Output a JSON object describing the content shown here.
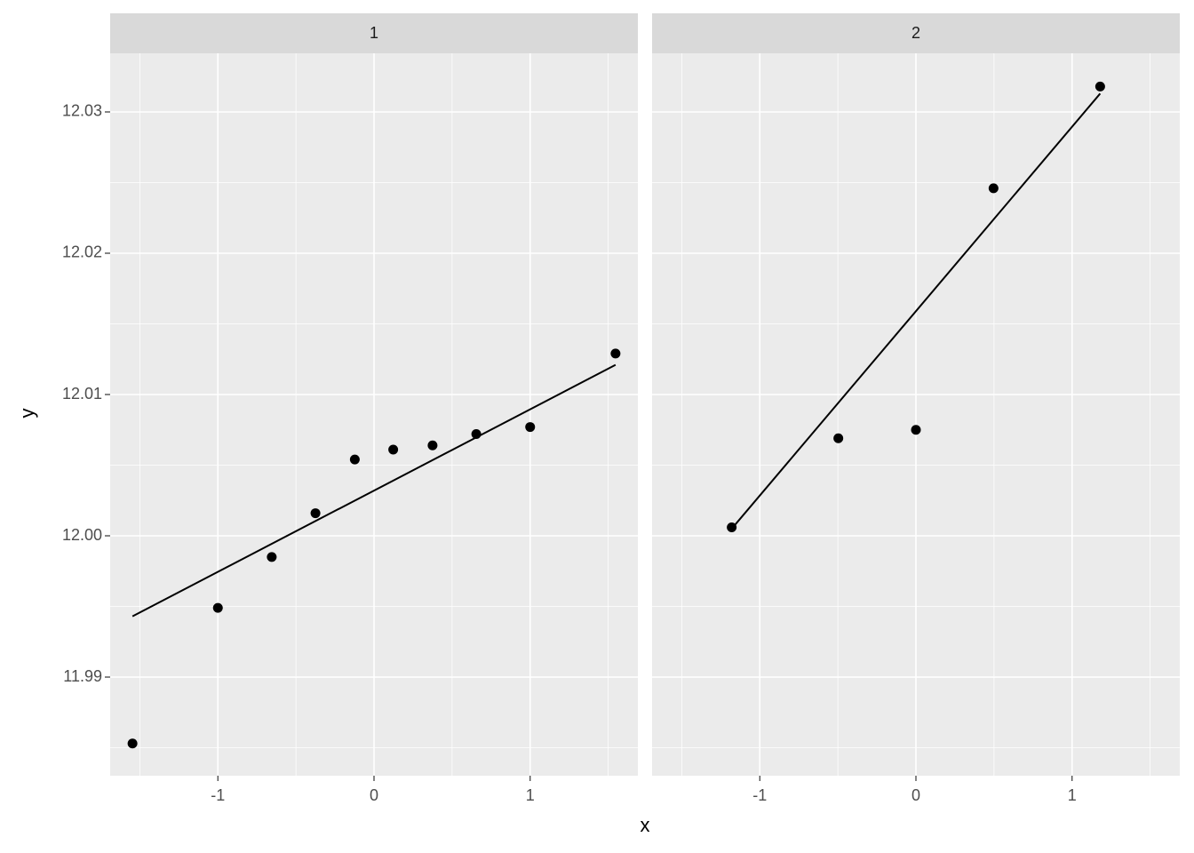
{
  "x_label": "x",
  "y_label": "y",
  "chart_data": [
    {
      "type": "scatter",
      "title": "1",
      "x": [
        -1.547,
        -1.0,
        -0.655,
        -0.375,
        -0.123,
        0.123,
        0.375,
        0.655,
        1.0,
        1.547
      ],
      "values": [
        11.9853,
        11.9949,
        11.9985,
        12.0016,
        12.0054,
        12.0061,
        12.0064,
        12.0072,
        12.0077,
        12.0129
      ],
      "line": {
        "x": [
          -1.547,
          1.547
        ],
        "values": [
          11.9943,
          12.0121
        ]
      },
      "color": "#000000",
      "xlim": [
        -1.69,
        1.69
      ],
      "xticks": [
        -1,
        0,
        1
      ],
      "xminor": [
        -1.5,
        -0.5,
        0.5,
        1.5
      ],
      "ylim": [
        11.98302,
        12.03415
      ],
      "yticks": [
        {
          "value": 11.99,
          "label": "11.99"
        },
        {
          "value": 12.0,
          "label": "12.00"
        },
        {
          "value": 12.01,
          "label": "12.01"
        },
        {
          "value": 12.02,
          "label": "12.02"
        },
        {
          "value": 12.03,
          "label": "12.03"
        }
      ],
      "yminor": [
        11.985,
        11.995,
        12.005,
        12.015,
        12.025
      ],
      "grid": true
    },
    {
      "type": "scatter",
      "title": "2",
      "x": [
        -1.18,
        -0.497,
        0,
        0.497,
        1.18
      ],
      "values": [
        12.0006,
        12.0069,
        12.0075,
        12.0246,
        12.0318
      ],
      "line": {
        "x": [
          -1.18,
          1.18
        ],
        "values": [
          12.0005,
          12.0313
        ]
      },
      "color": "#000000",
      "xlim": [
        -1.69,
        1.69
      ],
      "xticks": [
        -1,
        0,
        1
      ],
      "xminor": [
        -1.5,
        -0.5,
        0.5,
        1.5
      ],
      "ylim": [
        11.98302,
        12.03415
      ],
      "yticks": [
        11.99,
        12.0,
        12.01,
        12.02,
        12.03
      ],
      "yminor": [
        11.985,
        11.995,
        12.005,
        12.015,
        12.025
      ],
      "grid": true
    }
  ]
}
